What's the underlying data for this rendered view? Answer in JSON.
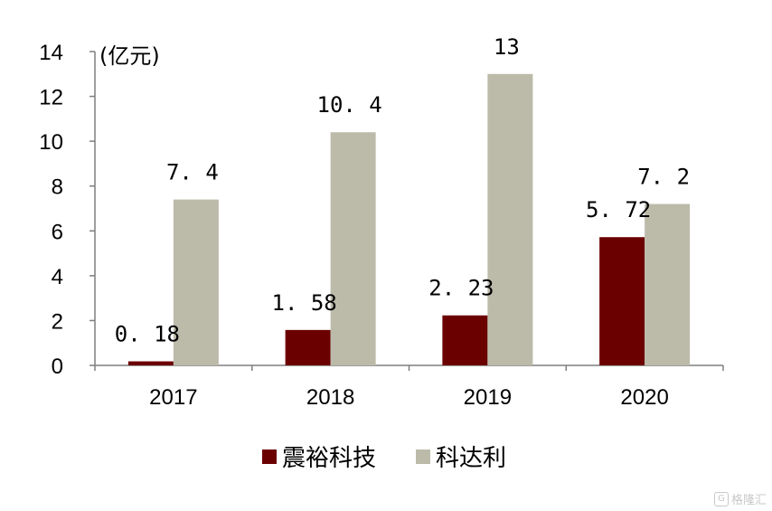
{
  "chart_data": {
    "type": "bar",
    "unit_label": "(亿元)",
    "categories": [
      "2017",
      "2018",
      "2019",
      "2020"
    ],
    "series": [
      {
        "name": "震裕科技",
        "values": [
          0.18,
          1.58,
          2.23,
          5.72
        ],
        "labels": [
          "0. 18",
          "1. 58",
          "2. 23",
          "5. 72"
        ],
        "color": "#6b0000"
      },
      {
        "name": "科达利",
        "values": [
          7.4,
          10.4,
          13,
          7.2
        ],
        "labels": [
          "7. 4",
          "10. 4",
          "13",
          "7. 2"
        ],
        "color": "#bcbbaa"
      }
    ],
    "ylim": [
      0,
      14
    ],
    "yticks": [
      0,
      2,
      4,
      6,
      8,
      10,
      12,
      14
    ],
    "grid": false,
    "legend_position": "bottom"
  },
  "watermark": {
    "logo": "G",
    "text": "格隆汇"
  }
}
